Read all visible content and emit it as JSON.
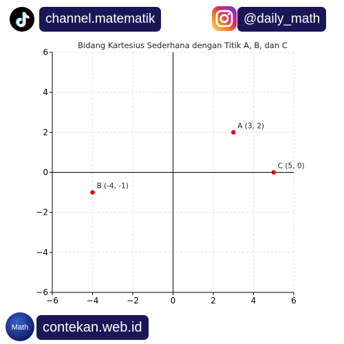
{
  "header": {
    "tiktok_handle": "channel.matematik",
    "instagram_handle": "@daily_math"
  },
  "footer": {
    "website": "contekan.web.id",
    "logo_text": "Math"
  },
  "icons": {
    "tiktok": "tiktok-logo-icon",
    "instagram": "instagram-logo-icon",
    "math_logo": "math-logo-icon"
  },
  "colors": {
    "badge_bg": "#1b1656",
    "point": "#e30000",
    "axis_line": "#000000",
    "grid": "#d9d9d9"
  },
  "chart_data": {
    "type": "scatter",
    "title": "Bidang Kartesius Sederhana dengan Titik A, B, dan C",
    "xlabel": "",
    "ylabel": "",
    "xlim": [
      -6,
      6
    ],
    "ylim": [
      -6,
      6
    ],
    "xticks": [
      "−6",
      "−4",
      "−2",
      "0",
      "2",
      "4",
      "6"
    ],
    "yticks": [
      "−6",
      "−4",
      "−2",
      "0",
      "2",
      "4",
      "6"
    ],
    "grid": true,
    "legend": "none",
    "points": [
      {
        "label": "A (3, 2)",
        "x": 3,
        "y": 2
      },
      {
        "label": "B (-4, -1)",
        "x": -4,
        "y": -1
      },
      {
        "label": "C (5, 0)",
        "x": 5,
        "y": 0
      }
    ]
  }
}
